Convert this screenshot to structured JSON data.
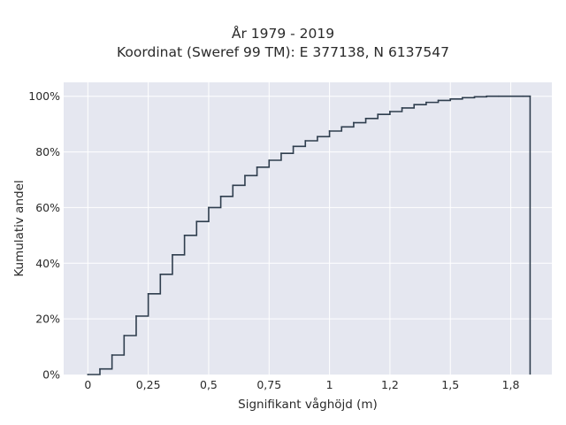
{
  "chart_data": {
    "type": "line",
    "line_shape": "step",
    "title": "År 1979 - 2019",
    "subtitle": "Koordinat (Sweref 99 TM): E 377138, N 6137547",
    "xlabel": "Signifikant våghöjd (m)",
    "ylabel": "Kumulativ andel",
    "xlim": [
      -0.1,
      1.92
    ],
    "ylim": [
      0,
      1.05
    ],
    "x_ticks": [
      0,
      0.25,
      0.5,
      0.75,
      1,
      1.25,
      1.5,
      1.75
    ],
    "x_tick_labels": [
      "0",
      "0,25",
      "0,5",
      "0,75",
      "1",
      "1,2",
      "1,5",
      "1,8"
    ],
    "y_ticks": [
      0,
      0.2,
      0.4,
      0.6,
      0.8,
      1
    ],
    "y_tick_labels": [
      "0%",
      "20%",
      "40%",
      "60%",
      "80%",
      "100%"
    ],
    "grid": true,
    "colors": {
      "background": "#E5E7F0",
      "grid": "#FFFFFF",
      "line": "#2F3E4E"
    },
    "x": [
      0,
      0.05,
      0.1,
      0.15,
      0.2,
      0.25,
      0.3,
      0.35,
      0.4,
      0.45,
      0.5,
      0.55,
      0.6,
      0.65,
      0.7,
      0.75,
      0.8,
      0.85,
      0.9,
      0.95,
      1.0,
      1.05,
      1.1,
      1.15,
      1.2,
      1.25,
      1.3,
      1.35,
      1.4,
      1.45,
      1.5,
      1.55,
      1.6,
      1.65,
      1.7,
      1.75,
      1.8,
      1.83
    ],
    "y": [
      0.0,
      0.02,
      0.07,
      0.14,
      0.21,
      0.29,
      0.36,
      0.43,
      0.5,
      0.55,
      0.6,
      0.64,
      0.68,
      0.715,
      0.745,
      0.77,
      0.795,
      0.82,
      0.84,
      0.855,
      0.875,
      0.89,
      0.905,
      0.92,
      0.935,
      0.945,
      0.958,
      0.97,
      0.978,
      0.985,
      0.99,
      0.995,
      0.998,
      1.0,
      1.0,
      1.0,
      1.0,
      1.0
    ],
    "end_x": 1.83
  }
}
